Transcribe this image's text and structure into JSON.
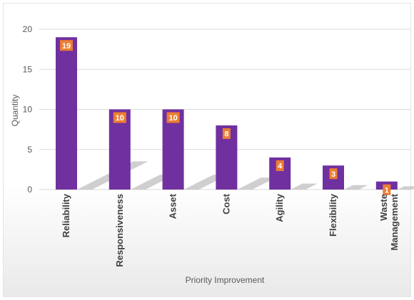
{
  "chart_data": {
    "type": "bar",
    "categories": [
      "Reliability",
      "Responsiveness",
      "Asset",
      "Cost",
      "Agility",
      "Flexibility",
      "Waste Management"
    ],
    "values": [
      19,
      10,
      10,
      8,
      4,
      3,
      1
    ],
    "xlabel": "Priority Improvement",
    "ylabel": "Quantity",
    "ylim": [
      0,
      20
    ],
    "yticks": [
      0,
      5,
      10,
      15,
      20
    ],
    "grid": true,
    "data_labels": true,
    "colors": {
      "bar": "#7030a0",
      "label_bg": "#ed7d31",
      "grid": "#d9d9d9",
      "shadow": "#bfbfbf"
    }
  }
}
